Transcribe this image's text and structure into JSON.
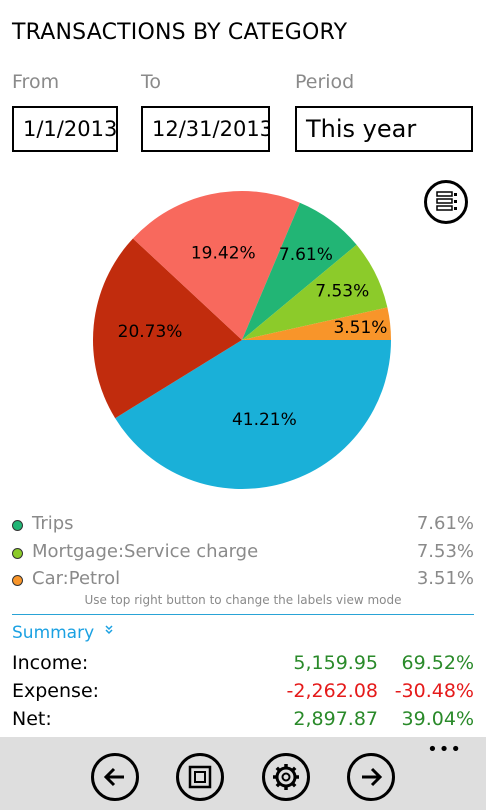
{
  "header": {
    "title": "TRANSACTIONS BY CATEGORY"
  },
  "filters": {
    "from_label": "From",
    "from_value": "1/1/2013",
    "to_label": "To",
    "to_value": "12/31/2013",
    "period_label": "Period",
    "period_value": "This year"
  },
  "chart_data": {
    "type": "pie",
    "slices": [
      {
        "value": 41.21,
        "label": "41.21%",
        "color": "#1ab0d8"
      },
      {
        "value": 20.73,
        "label": "20.73%",
        "color": "#c12c0d"
      },
      {
        "value": 19.42,
        "label": "19.42%",
        "color": "#f8695d"
      },
      {
        "value": 7.61,
        "label": "7.61%",
        "color": "#22b575"
      },
      {
        "value": 7.53,
        "label": "7.53%",
        "color": "#8ccb2a"
      },
      {
        "value": 3.51,
        "label": "3.51%",
        "color": "#f8952a"
      }
    ]
  },
  "legend": [
    {
      "name": "Trips",
      "pct": "7.61%",
      "color": "#22b575"
    },
    {
      "name": "Mortgage:Service charge",
      "pct": "7.53%",
      "color": "#8ccb2a"
    },
    {
      "name": "Car:Petrol",
      "pct": "3.51%",
      "color": "#f8952a"
    }
  ],
  "hint": "Use top right button to change the labels view mode",
  "summary": {
    "label": "Summary",
    "rows": [
      {
        "label": "Income:",
        "amount": "5,159.95",
        "pct": "69.52%"
      },
      {
        "label": "Expense:",
        "amount": "-2,262.08",
        "pct": "-30.48%"
      },
      {
        "label": "Net:",
        "amount": "2,897.87",
        "pct": "39.04%"
      }
    ]
  },
  "appbar": {
    "more": "•••"
  },
  "icons": {
    "mode": "list-view-icon",
    "back": "arrow-left-icon",
    "page": "page-icon",
    "settings": "gear-icon",
    "forward": "arrow-right-icon"
  }
}
